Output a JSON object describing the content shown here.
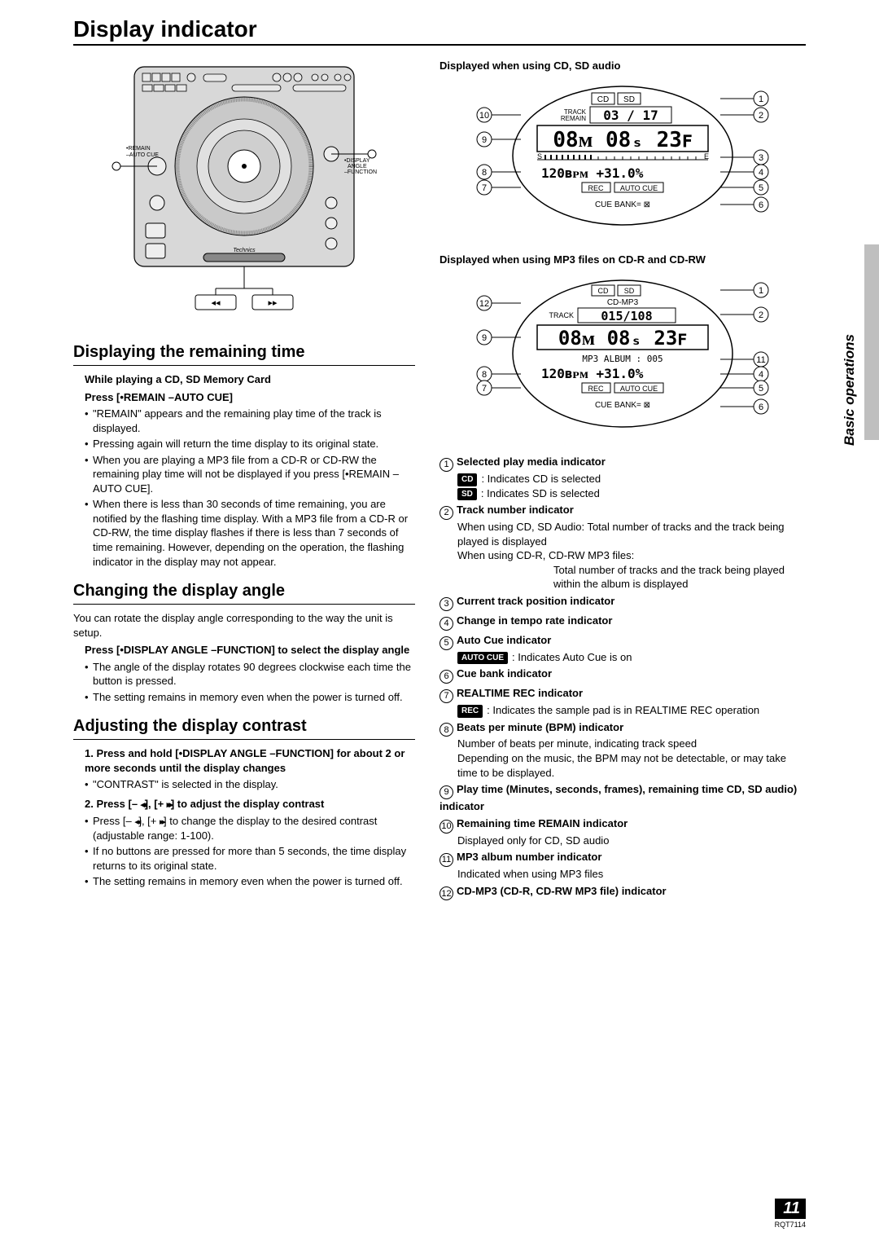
{
  "page": {
    "title": "Display indicator",
    "side_tab": "Basic operations",
    "page_number": "11",
    "doc_code": "RQT7114"
  },
  "turntable_labels": {
    "remain": "•REMAIN",
    "auto_cue": "–AUTO CUE",
    "display": "•DISPLAY",
    "angle": "ANGLE",
    "function": "–FUNCTION",
    "brand": "Technics"
  },
  "section_remaining": {
    "heading": "Displaying the remaining time",
    "lead1": "While playing a CD, SD Memory Card",
    "lead2": "Press [•REMAIN –AUTO CUE]",
    "bullets": [
      "\"REMAIN\" appears and the remaining play time of the track is displayed.",
      "Pressing again will return the time display to its original state.",
      "When you are playing a MP3 file from a CD-R or CD-RW the remaining play time will not be displayed if you press [•REMAIN –AUTO CUE].",
      "When there is less than 30 seconds of time remaining, you are notified by the flashing time display. With a MP3 file from a CD-R or CD-RW, the time display flashes if there is less than 7 seconds of time remaining. However, depending on the operation, the flashing indicator in the display may not appear."
    ]
  },
  "section_angle": {
    "heading": "Changing the display angle",
    "intro": "You can rotate the display angle corresponding to the way the unit is setup.",
    "lead": "Press [•DISPLAY ANGLE –FUNCTION] to select the display angle",
    "bullets": [
      "The angle of the display rotates 90 degrees clockwise each time the button is pressed.",
      "The setting remains in memory even when the power is turned off."
    ]
  },
  "section_contrast": {
    "heading": "Adjusting the display contrast",
    "step1": "1. Press and hold [•DISPLAY ANGLE –FUNCTION] for about 2 or more seconds until the display changes",
    "b1": [
      "\"CONTRAST\" is selected in the display."
    ],
    "step2_pre": "2. Press [– ",
    "step2_mid": "], [+ ",
    "step2_post": "] to adjust the display contrast",
    "b2_pre": "Press [– ",
    "b2_mid": "], [+ ",
    "b2_post": "] to change the display to the desired contrast (adjustable range: 1-100).",
    "b2b": "If no buttons are pressed for more than 5 seconds, the time display returns to its original state.",
    "b2c": "The setting remains in memory even when the power is turned off."
  },
  "right": {
    "head1": "Displayed when using CD, SD audio",
    "head2": "Displayed when using MP3 files on CD-R and CD-RW"
  },
  "display1": {
    "cd": "CD",
    "sd": "SD",
    "track": "TRACK",
    "remain": "REMAIN",
    "track_value": "03 / 17",
    "time": "08M 08S 23F",
    "bpm": "120BPM",
    "pitch": "+31.0%",
    "rec": "REC",
    "autocue": "AUTO CUE",
    "cuebank": "CUE BANK=",
    "callouts_right": [
      "1",
      "2",
      "3",
      "4",
      "5",
      "6"
    ],
    "callouts_left": [
      "10",
      "9",
      "8",
      "7"
    ]
  },
  "display2": {
    "cd": "CD",
    "sd": "SD",
    "cdmp3": "CD-MP3",
    "track": "TRACK",
    "track_value": "015/108",
    "time": "08M 08S 23F",
    "album": "MP3 ALBUM : 005",
    "bpm": "120BPM",
    "pitch": "+31.0%",
    "rec": "REC",
    "autocue": "AUTO CUE",
    "cuebank": "CUE BANK=",
    "callouts_right": [
      "1",
      "2",
      "11",
      "4",
      "5",
      "6"
    ],
    "callouts_left": [
      "12",
      "9",
      "8",
      "7"
    ]
  },
  "indicators": [
    {
      "n": "1",
      "head": "Selected play media indicator",
      "lines": [
        {
          "badge": "CD",
          "text": ": Indicates CD is selected"
        },
        {
          "badge": "SD",
          "text": ": Indicates SD is selected"
        }
      ]
    },
    {
      "n": "2",
      "head": "Track number indicator",
      "lines": [
        {
          "text": "When using CD, SD Audio: Total number of tracks and the track being played is displayed"
        },
        {
          "text": "When using CD-R, CD-RW MP3 files:"
        },
        {
          "indent": true,
          "text": "Total number of tracks and the track being played within the album is displayed"
        }
      ]
    },
    {
      "n": "3",
      "head": "Current track position indicator"
    },
    {
      "n": "4",
      "head": "Change in tempo rate indicator"
    },
    {
      "n": "5",
      "head": "Auto Cue indicator",
      "lines": [
        {
          "badge": "AUTO CUE",
          "text": ": Indicates Auto Cue is on"
        }
      ]
    },
    {
      "n": "6",
      "head": "Cue bank indicator"
    },
    {
      "n": "7",
      "head": "REALTIME REC indicator",
      "lines": [
        {
          "badge": "REC",
          "text": ": Indicates the sample pad is in REALTIME REC operation"
        }
      ]
    },
    {
      "n": "8",
      "head": "Beats per minute (BPM) indicator",
      "lines": [
        {
          "text": "Number of beats per minute, indicating track speed"
        },
        {
          "text": "Depending on the music, the BPM may not be detectable, or may take time to be displayed."
        }
      ]
    },
    {
      "n": "9",
      "head": "Play time (Minutes, seconds, frames), remaining time CD, SD audio) indicator"
    },
    {
      "n": "10",
      "head": "Remaining time REMAIN indicator",
      "lines": [
        {
          "text": "Displayed only for CD, SD audio"
        }
      ]
    },
    {
      "n": "11",
      "head": "MP3 album number indicator",
      "lines": [
        {
          "text": "Indicated when using MP3 files"
        }
      ]
    },
    {
      "n": "12",
      "head": "CD-MP3 (CD-R, CD-RW MP3 file) indicator"
    }
  ],
  "colors": {
    "bg": "#ffffff",
    "text": "#000000",
    "grey": "#bfbfbf",
    "turntable_fill": "#d8d8d8"
  }
}
